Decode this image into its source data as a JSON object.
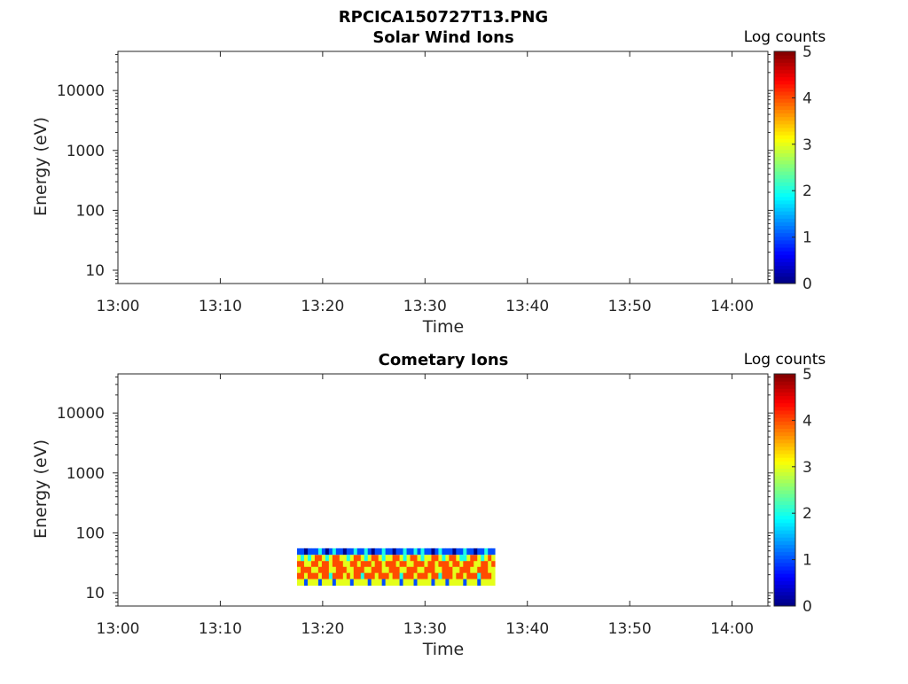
{
  "figure_title": "RPCICA150727T13.PNG",
  "chart_data": [
    {
      "type": "heatmap",
      "title": "Solar Wind Ions",
      "xlabel": "Time",
      "ylabel": "Energy (eV)",
      "x_ticks": [
        "13:00",
        "13:10",
        "13:20",
        "13:30",
        "13:40",
        "13:50",
        "14:00"
      ],
      "x_range_minutes": [
        0,
        63.5
      ],
      "y_scale": "log",
      "y_ticks": [
        "10",
        "100",
        "1000",
        "10000"
      ],
      "y_range": [
        6,
        45000
      ],
      "colorbar": {
        "label": "Log counts",
        "ticks": [
          "0",
          "1",
          "2",
          "3",
          "4",
          "5"
        ],
        "range": [
          0,
          5
        ],
        "colormap": "jet"
      },
      "data": null
    },
    {
      "type": "heatmap",
      "title": "Cometary Ions",
      "xlabel": "Time",
      "ylabel": "Energy (eV)",
      "x_ticks": [
        "13:00",
        "13:10",
        "13:20",
        "13:30",
        "13:40",
        "13:50",
        "14:00"
      ],
      "x_range_minutes": [
        0,
        63.5
      ],
      "y_scale": "log",
      "y_ticks": [
        "10",
        "100",
        "1000",
        "10000"
      ],
      "y_range": [
        6,
        45000
      ],
      "colorbar": {
        "label": "Log counts",
        "ticks": [
          "0",
          "1",
          "2",
          "3",
          "4",
          "5"
        ],
        "range": [
          0,
          5
        ],
        "colormap": "jet"
      },
      "data": {
        "time_start": "13:17:30",
        "time_end": "13:36:50",
        "energy_bins_eV": [
          49,
          38,
          30,
          24,
          19,
          15
        ],
        "columns": 56,
        "log_counts_rows": [
          [
            1,
            1,
            0,
            1,
            1,
            1,
            2,
            1,
            0,
            1,
            2,
            1,
            1,
            0,
            1,
            1,
            2,
            1,
            1,
            2,
            1,
            0,
            1,
            1,
            2,
            1,
            1,
            0,
            1,
            1,
            2,
            1,
            1,
            2,
            1,
            2,
            1,
            1,
            0,
            1,
            2,
            1,
            1,
            1,
            0,
            1,
            1,
            2,
            1,
            1,
            0,
            1,
            1,
            2,
            1,
            1
          ],
          [
            3,
            2,
            3,
            2,
            3,
            4,
            4,
            3,
            2,
            3,
            4,
            4,
            3,
            3,
            2,
            3,
            4,
            4,
            3,
            2,
            3,
            4,
            4,
            3,
            2,
            3,
            3,
            4,
            4,
            3,
            2,
            3,
            4,
            4,
            3,
            2,
            3,
            3,
            4,
            4,
            3,
            2,
            3,
            4,
            4,
            3,
            2,
            2,
            3,
            4,
            4,
            3,
            2,
            3,
            4,
            3
          ],
          [
            4,
            4,
            3,
            3,
            4,
            4,
            3,
            4,
            4,
            3,
            4,
            4,
            4,
            3,
            3,
            4,
            4,
            3,
            4,
            4,
            4,
            3,
            4,
            4,
            3,
            4,
            4,
            4,
            3,
            4,
            4,
            3,
            3,
            4,
            4,
            4,
            3,
            4,
            4,
            3,
            4,
            4,
            4,
            3,
            4,
            4,
            3,
            4,
            4,
            4,
            3,
            3,
            4,
            4,
            3,
            4
          ],
          [
            3,
            4,
            4,
            4,
            3,
            3,
            4,
            4,
            4,
            3,
            3,
            4,
            4,
            4,
            3,
            3,
            4,
            4,
            4,
            3,
            3,
            4,
            4,
            4,
            3,
            3,
            4,
            4,
            4,
            3,
            3,
            4,
            4,
            4,
            3,
            3,
            4,
            4,
            4,
            3,
            3,
            4,
            4,
            4,
            3,
            3,
            4,
            4,
            4,
            3,
            3,
            4,
            4,
            4,
            3,
            3
          ],
          [
            4,
            4,
            3,
            4,
            4,
            4,
            3,
            4,
            4,
            2,
            4,
            4,
            4,
            3,
            4,
            3,
            4,
            4,
            2,
            4,
            4,
            4,
            3,
            4,
            4,
            4,
            3,
            4,
            4,
            2,
            4,
            4,
            4,
            3,
            4,
            4,
            4,
            3,
            4,
            4,
            2,
            4,
            4,
            4,
            3,
            4,
            4,
            3,
            4,
            4,
            4,
            2,
            4,
            4,
            4,
            3
          ],
          [
            3,
            3,
            1,
            3,
            3,
            3,
            1,
            3,
            3,
            3,
            1,
            3,
            3,
            3,
            3,
            1,
            3,
            3,
            3,
            3,
            1,
            3,
            3,
            3,
            1,
            3,
            3,
            3,
            3,
            1,
            3,
            3,
            3,
            1,
            3,
            3,
            3,
            3,
            1,
            3,
            3,
            3,
            1,
            3,
            3,
            3,
            3,
            1,
            3,
            3,
            3,
            1,
            3,
            3,
            3,
            3
          ]
        ]
      }
    }
  ]
}
